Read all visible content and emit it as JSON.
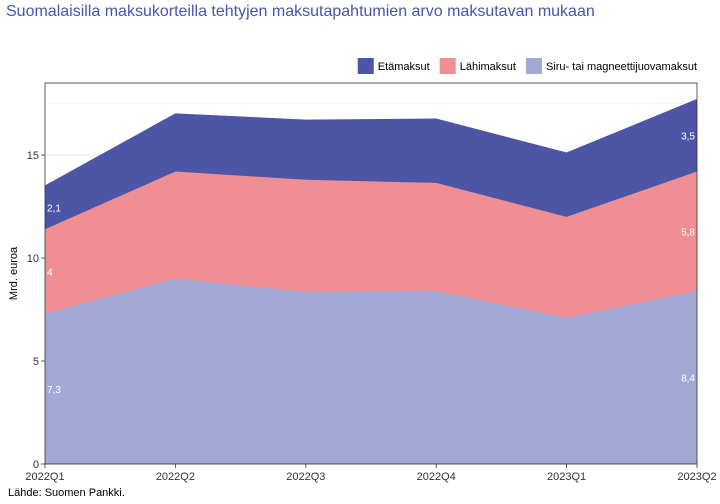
{
  "title": "Suomalaisilla maksukorteilla tehtyjen maksutapahtumien arvo maksutavan mukaan",
  "source": "Lähde: Suomen Pankki.",
  "chart_data": {
    "type": "area",
    "stacked": true,
    "title": "Suomalaisilla maksukorteilla tehtyjen maksutapahtumien arvo maksutavan mukaan",
    "xlabel": "",
    "ylabel": "Mrd. euroa",
    "categories": [
      "2022Q1",
      "2022Q2",
      "2022Q3",
      "2022Q4",
      "2023Q1",
      "2023Q2"
    ],
    "ylim": [
      0,
      18.5
    ],
    "yticks": [
      0,
      5,
      10,
      15
    ],
    "grid": true,
    "legend_position": "top-right",
    "series": [
      {
        "name": "Siru- tai magneettijuovamaksut",
        "color": "#a3a7d6",
        "values": [
          7.3,
          9.0,
          8.35,
          8.4,
          7.1,
          8.4
        ]
      },
      {
        "name": "Lähimaksut",
        "color": "#f08f93",
        "values": [
          4.1,
          5.2,
          5.45,
          5.25,
          4.9,
          5.8
        ]
      },
      {
        "name": "Etämaksut",
        "color": "#4d55a6",
        "values": [
          2.1,
          2.8,
          2.9,
          3.1,
          3.1,
          3.5
        ]
      }
    ],
    "legend_order": [
      "Etämaksut",
      "Lähimaksut",
      "Siru- tai magneettijuovamaksut"
    ],
    "data_labels": [
      {
        "series": "Etämaksut",
        "index": 0,
        "text": "2,1"
      },
      {
        "series": "Lähimaksut",
        "index": 0,
        "text": "4"
      },
      {
        "series": "Siru- tai magneettijuovamaksut",
        "index": 0,
        "text": "7,3"
      },
      {
        "series": "Etämaksut",
        "index": 5,
        "text": "3,5"
      },
      {
        "series": "Lähimaksut",
        "index": 5,
        "text": "5,8"
      },
      {
        "series": "Siru- tai magneettijuovamaksut",
        "index": 5,
        "text": "8,4"
      }
    ]
  }
}
